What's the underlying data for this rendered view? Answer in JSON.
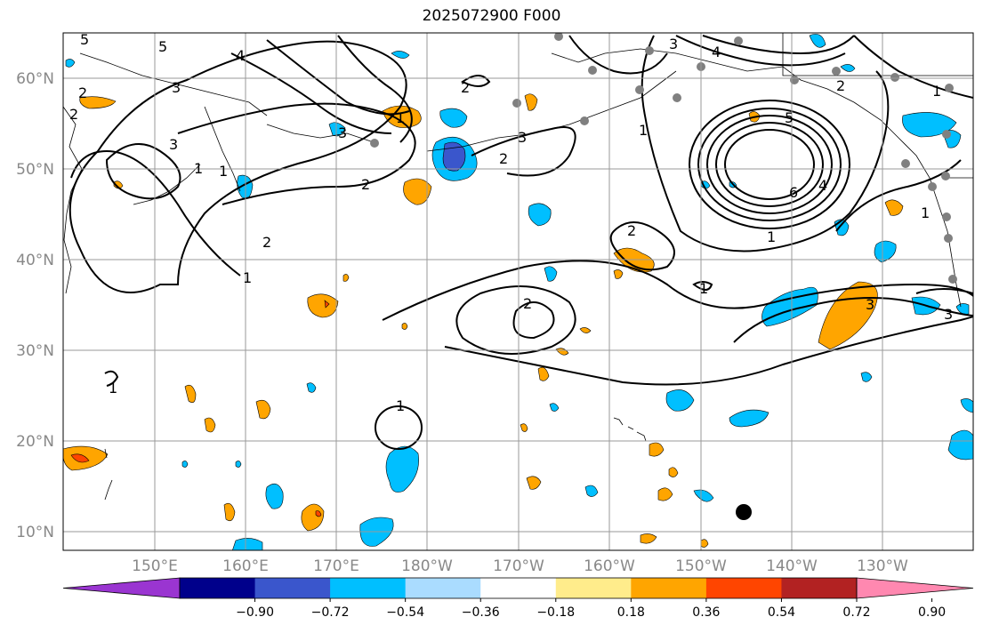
{
  "title": "2025072900 F000",
  "lon_ticks": [
    "150°E",
    "160°E",
    "170°E",
    "180°W",
    "170°W",
    "160°W",
    "150°W",
    "140°W",
    "130°W"
  ],
  "lat_ticks": [
    "10°N",
    "20°N",
    "30°N",
    "40°N",
    "50°N",
    "60°N"
  ],
  "colorbar": {
    "levels": [
      "−0.90",
      "−0.72",
      "−0.54",
      "−0.36",
      "−0.18",
      "0.18",
      "0.36",
      "0.54",
      "0.72",
      "0.90"
    ],
    "colors": [
      "#9a35d1",
      "#00008b",
      "#3a56cc",
      "#00bfff",
      "#aadcff",
      "#ffffff",
      "#ffec8b",
      "#ffa500",
      "#ff4500",
      "#b22222",
      "#ff88b0"
    ]
  },
  "contour_labels": [
    "5",
    "5",
    "4",
    "3",
    "2",
    "2",
    "3",
    "1",
    "1",
    "2",
    "3",
    "2",
    "2",
    "1",
    "1",
    "2",
    "1",
    "5",
    "6",
    "4",
    "1",
    "3",
    "2",
    "3",
    "1",
    "2",
    "1",
    "1",
    "3",
    "2",
    "1",
    "3",
    "4",
    "1"
  ]
}
